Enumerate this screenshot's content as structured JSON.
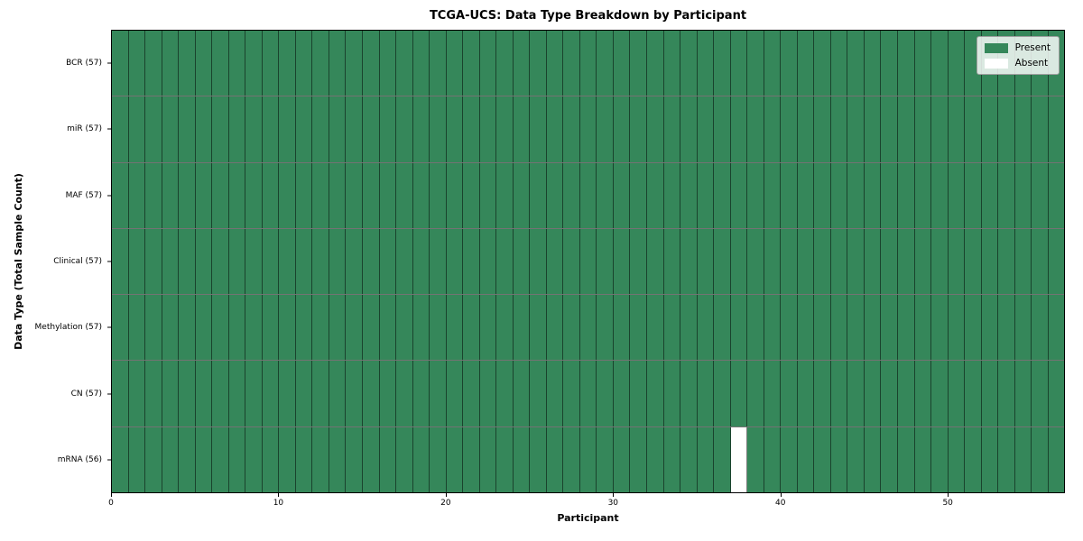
{
  "title": "TCGA-UCS: Data Type Breakdown by Participant",
  "chart_data": {
    "type": "heatmap",
    "title": "TCGA-UCS: Data Type Breakdown by Participant",
    "xlabel": "Participant",
    "ylabel": "Data Type (Total Sample Count)",
    "x_range": [
      0,
      57
    ],
    "x_ticks": [
      0,
      10,
      20,
      30,
      40,
      50
    ],
    "n_participants": 57,
    "grid": true,
    "legend_position": "upper right",
    "rows": [
      {
        "label": "BCR (57)",
        "data_type": "BCR",
        "total_sample_count": 57,
        "absent_participants": []
      },
      {
        "label": "miR (57)",
        "data_type": "miR",
        "total_sample_count": 57,
        "absent_participants": []
      },
      {
        "label": "MAF (57)",
        "data_type": "MAF",
        "total_sample_count": 57,
        "absent_participants": []
      },
      {
        "label": "Clinical (57)",
        "data_type": "Clinical",
        "total_sample_count": 57,
        "absent_participants": []
      },
      {
        "label": "Methylation (57)",
        "data_type": "Methylation",
        "total_sample_count": 57,
        "absent_participants": []
      },
      {
        "label": "CN (57)",
        "data_type": "CN",
        "total_sample_count": 57,
        "absent_participants": []
      },
      {
        "label": "mRNA (56)",
        "data_type": "mRNA",
        "total_sample_count": 56,
        "absent_participants": [
          37
        ]
      }
    ],
    "legend": [
      {
        "label": "Present",
        "color": "#35875a"
      },
      {
        "label": "Absent",
        "color": "#ffffff"
      }
    ],
    "colors": {
      "present": "#35875a",
      "absent": "#ffffff",
      "cell_edge": "rgba(0,0,0,0.5)",
      "spine": "#000000"
    }
  }
}
